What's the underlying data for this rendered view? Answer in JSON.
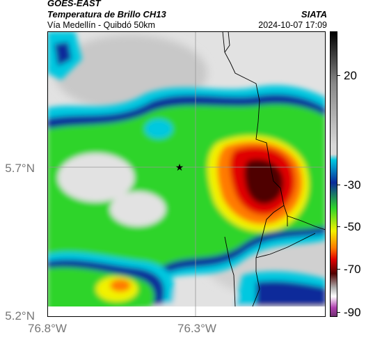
{
  "header": {
    "satellite": "GOES-EAST",
    "product": "Temperatura de Brillo CH13",
    "region": "Vía Medellín - Quibdó 50km",
    "org": "SIATA",
    "datetime": "2024-10-07 17:09"
  },
  "map": {
    "lat_ticks": [
      "5.7°N",
      "5.2°N"
    ],
    "lon_ticks": [
      "76.8°W",
      "76.3°W"
    ],
    "marker": "star-icon"
  },
  "colorbar": {
    "labels": [
      "20",
      "-30",
      "-50",
      "-70",
      "-90"
    ],
    "colors": {
      "warm": "#d8d8d8",
      "cyan": "#00c8e0",
      "blue": "#0a2a9a",
      "green": "#2fd42a",
      "yellow": "#f2f200",
      "orange": "#ff7a00",
      "red": "#e00000",
      "darkred": "#500000",
      "magenta": "#b040b0"
    }
  }
}
